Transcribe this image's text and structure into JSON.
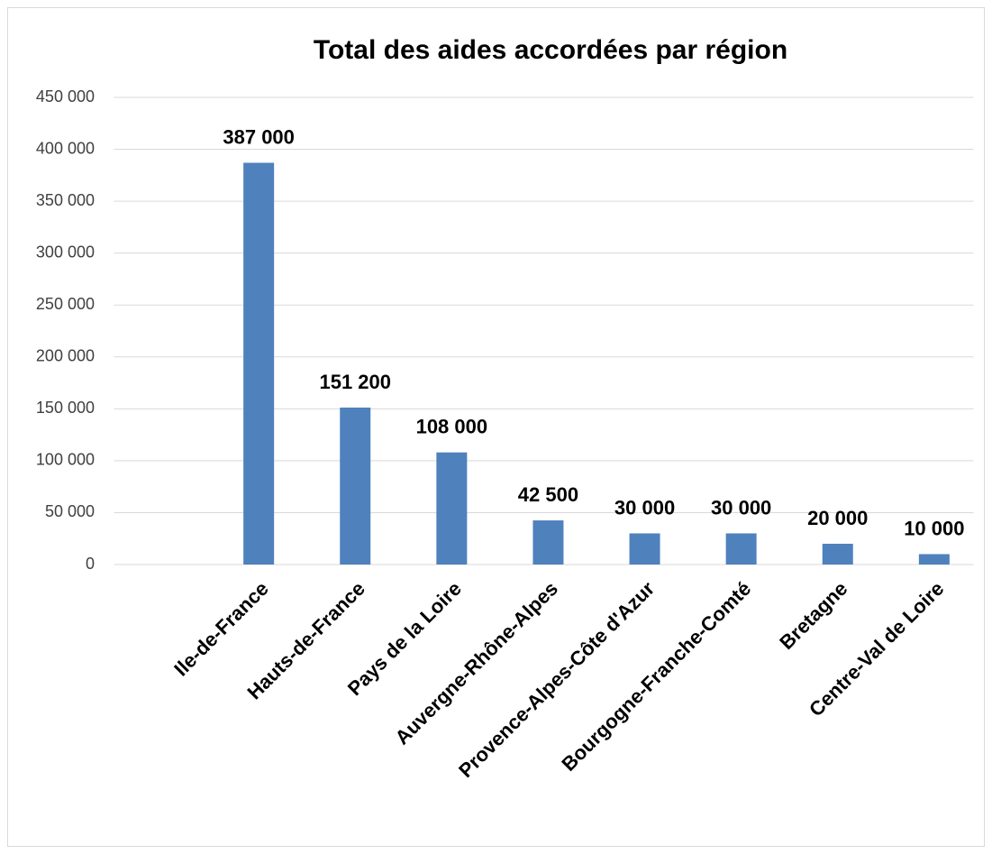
{
  "chart_data": {
    "type": "bar",
    "title": "Total des aides accordées par région",
    "categories": [
      null,
      "Ile-de-France",
      "Hauts-de-France",
      "Pays de la Loire",
      "Auvergne-Rhône-Alpes",
      "Provence-Alpes-Côte d'Azur",
      "Bourgogne-Franche-Comté",
      "Bretagne",
      "Centre-Val de Loire"
    ],
    "values": [
      null,
      387000,
      151200,
      108000,
      42500,
      30000,
      30000,
      20000,
      10000
    ],
    "value_labels": [
      null,
      "387 000",
      "151 200",
      "108 000",
      "42 500",
      "30 000",
      "30 000",
      "20 000",
      "10 000"
    ],
    "color": "#4f81bd",
    "ylim": [
      0,
      450000
    ],
    "yticks": [
      0,
      {
        "value": 50000,
        "label": "50 000"
      },
      {
        "value": 100000,
        "label": "100 000"
      },
      {
        "value": 150000,
        "label": "150 000"
      },
      {
        "value": 200000,
        "label": "200 000"
      },
      {
        "value": 250000,
        "label": "250 000"
      },
      {
        "value": 300000,
        "label": "300 000"
      },
      {
        "value": 350000,
        "label": "350 000"
      },
      {
        "value": 400000,
        "label": "400 000"
      },
      {
        "value": 450000,
        "label": "450 000"
      }
    ],
    "grid": true
  }
}
